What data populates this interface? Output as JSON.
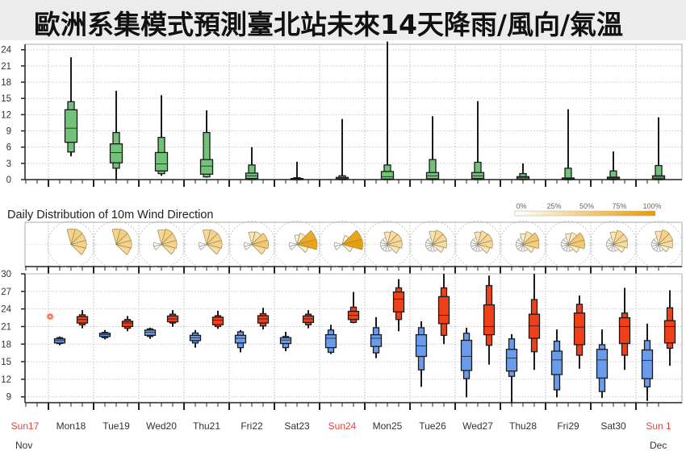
{
  "title": "歐洲系集模式預測臺北站未來14天降雨/風向/氣溫",
  "colors": {
    "precip_fill": "#72c27a",
    "tmin_fill": "#6b9cec",
    "tmax_fill": "#f0401a",
    "outline": "#1a1a1a",
    "sunday_label": "#d9463e",
    "weekday_label": "#333333",
    "rose_high": "#e89a00",
    "observation": "#f05a3c"
  },
  "x_axis": {
    "day_labels": [
      "Sun17",
      "Mon18",
      "Tue19",
      "Wed20",
      "Thu21",
      "Fri22",
      "Sat23",
      "Sun24",
      "Mon25",
      "Tue26",
      "Wed27",
      "Thu28",
      "Fri29",
      "Sat30",
      "Sun 1"
    ],
    "sundays": [
      "Sun17",
      "Sun24",
      "Sun 1"
    ],
    "month_labels": [
      "Nov",
      "Dec"
    ]
  },
  "wind": {
    "title": "Daily Distribution of 10m Wind Direction",
    "legend_labels": [
      "0%",
      "25%",
      "50%",
      "75%",
      "100%"
    ]
  },
  "chart_data": [
    {
      "type": "boxplot",
      "panel": "daily precipitation",
      "ylim": [
        0,
        25
      ],
      "yticks": [
        0,
        3,
        6,
        9,
        12,
        15,
        18,
        21,
        24
      ],
      "grid": true,
      "stat_order": [
        "min",
        "p10",
        "p25",
        "median",
        "p75",
        "p90",
        "max"
      ],
      "categories": [
        "Mon18",
        "Tue19",
        "Wed20",
        "Thu21",
        "Fri22",
        "Sat23",
        "Sun24",
        "Mon25",
        "Tue26",
        "Wed27",
        "Thu28",
        "Fri29",
        "Sat30",
        "Sun 1"
      ],
      "values": [
        [
          4.3,
          5.1,
          6.9,
          9.5,
          12.9,
          14.4,
          22.6
        ],
        [
          0,
          2.1,
          3.1,
          5.0,
          6.6,
          8.7,
          16.4
        ],
        [
          0.7,
          1.1,
          1.6,
          2.9,
          5.0,
          7.8,
          15.6
        ],
        [
          0.35,
          0.5,
          1.0,
          2.5,
          3.7,
          8.7,
          12.8
        ],
        [
          0,
          0,
          0.2,
          0.7,
          1.2,
          2.7,
          6.0
        ],
        [
          0,
          0,
          0,
          0.1,
          0.2,
          0.35,
          3.3
        ],
        [
          0,
          0,
          0.1,
          0.2,
          0.4,
          0.7,
          11.2
        ],
        [
          0,
          0,
          0.1,
          0.55,
          1.5,
          2.7,
          25.5
        ],
        [
          0,
          0,
          0.15,
          0.7,
          1.3,
          3.7,
          11.7
        ],
        [
          0,
          0,
          0.2,
          0.7,
          1.3,
          3.2,
          14.5
        ],
        [
          0,
          0,
          0.1,
          0.35,
          0.55,
          1.1,
          3.0
        ],
        [
          0,
          0,
          0.05,
          0.15,
          0.3,
          2.1,
          13.0
        ],
        [
          0,
          0,
          0.1,
          0.3,
          0.45,
          1.6,
          5.2
        ],
        [
          0,
          0,
          0.15,
          0.45,
          0.7,
          2.6,
          11.5
        ]
      ]
    },
    {
      "type": "windrose",
      "panel": "daily distribution of 10m wind direction",
      "directions_deg": [
        0,
        30,
        60,
        90,
        120,
        150,
        180,
        210,
        240,
        270,
        300,
        330
      ],
      "scale": [
        0,
        100
      ],
      "categories": [
        "Mon18",
        "Tue19",
        "Wed20",
        "Thu21",
        "Fri22",
        "Sat23",
        "Sun24",
        "Mon25",
        "Tue26",
        "Wed27",
        "Thu28",
        "Fri29",
        "Sat30",
        "Sun 1"
      ],
      "values": [
        [
          45,
          50,
          45,
          45,
          40,
          0,
          0,
          0,
          0,
          0,
          0,
          0
        ],
        [
          45,
          50,
          45,
          45,
          40,
          0,
          0,
          0,
          0,
          0,
          0,
          0
        ],
        [
          40,
          50,
          45,
          45,
          35,
          0,
          0,
          0,
          5,
          5,
          0,
          0
        ],
        [
          40,
          45,
          45,
          45,
          35,
          0,
          0,
          0,
          5,
          5,
          0,
          0
        ],
        [
          25,
          30,
          50,
          55,
          35,
          0,
          0,
          0,
          5,
          5,
          0,
          0
        ],
        [
          10,
          20,
          85,
          90,
          20,
          0,
          0,
          0,
          5,
          5,
          0,
          0
        ],
        [
          0,
          10,
          90,
          95,
          15,
          0,
          0,
          0,
          5,
          5,
          0,
          0
        ],
        [
          25,
          35,
          40,
          40,
          25,
          3,
          3,
          3,
          3,
          3,
          3,
          3
        ],
        [
          30,
          40,
          40,
          35,
          20,
          3,
          3,
          3,
          3,
          3,
          3,
          3
        ],
        [
          25,
          35,
          40,
          40,
          25,
          3,
          3,
          3,
          3,
          3,
          3,
          3
        ],
        [
          15,
          30,
          55,
          50,
          20,
          3,
          3,
          3,
          3,
          3,
          3,
          3
        ],
        [
          15,
          25,
          55,
          55,
          20,
          3,
          3,
          3,
          3,
          3,
          3,
          3
        ],
        [
          25,
          40,
          40,
          35,
          20,
          3,
          3,
          3,
          3,
          3,
          3,
          3
        ],
        [
          30,
          45,
          40,
          35,
          15,
          3,
          3,
          3,
          3,
          3,
          3,
          3
        ]
      ]
    },
    {
      "type": "boxplot",
      "panel": "2m temperature",
      "ylim": [
        8,
        30
      ],
      "yticks": [
        9,
        12,
        15,
        18,
        21,
        24,
        27,
        30
      ],
      "grid": true,
      "stat_order": [
        "min",
        "p10",
        "p25",
        "median",
        "p75",
        "p90",
        "max"
      ],
      "observation": {
        "day": "Sun17",
        "value": 22.7
      },
      "categories": [
        "Mon18",
        "Tue19",
        "Wed20",
        "Thu21",
        "Fri22",
        "Sat23",
        "Sun24",
        "Mon25",
        "Tue26",
        "Wed27",
        "Thu28",
        "Fri29",
        "Sat30",
        "Sun 1"
      ],
      "series": [
        {
          "kind": "min",
          "values": [
            [
              17.8,
              18.1,
              18.2,
              18.6,
              18.9,
              19.1,
              19.3
            ],
            [
              18.8,
              19.1,
              19.3,
              19.6,
              19.85,
              20.0,
              20.4
            ],
            [
              18.9,
              19.3,
              19.5,
              20.0,
              20.4,
              20.6,
              20.8
            ],
            [
              17.4,
              18.2,
              18.6,
              19.1,
              19.5,
              19.9,
              20.4
            ],
            [
              16.6,
              17.4,
              18.2,
              19.0,
              19.5,
              20.1,
              20.4
            ],
            [
              16.8,
              17.4,
              18.1,
              18.7,
              19.1,
              19.3,
              20.1
            ],
            [
              16.3,
              16.6,
              17.4,
              19.0,
              19.6,
              20.4,
              21.3
            ],
            [
              15.6,
              16.5,
              17.6,
              19.0,
              19.6,
              20.8,
              22.6
            ],
            [
              10.7,
              13.6,
              15.9,
              17.7,
              19.6,
              20.8,
              21.9
            ],
            [
              8.9,
              12.1,
              13.5,
              15.9,
              18.65,
              19.85,
              20.8
            ],
            [
              7.9,
              12.5,
              13.4,
              15.6,
              17.1,
              18.9,
              19.7
            ],
            [
              8.9,
              10.2,
              12.8,
              15.3,
              16.8,
              18.5,
              20.5
            ],
            [
              8.8,
              9.9,
              12.2,
              15.3,
              17.1,
              17.9,
              20.5
            ],
            [
              8.3,
              10.7,
              12.1,
              15.2,
              17.0,
              18.6,
              21.5
            ]
          ]
        },
        {
          "kind": "max",
          "values": [
            [
              20.7,
              21.3,
              21.6,
              22.2,
              22.7,
              23.0,
              23.8
            ],
            [
              20.2,
              20.7,
              21.0,
              21.6,
              21.9,
              22.2,
              22.8
            ],
            [
              20.95,
              21.6,
              21.8,
              22.3,
              22.8,
              23.1,
              23.8
            ],
            [
              20.6,
              21.0,
              21.3,
              22.1,
              22.6,
              22.85,
              23.7
            ],
            [
              20.5,
              21.1,
              21.6,
              22.3,
              22.85,
              23.2,
              24.2
            ],
            [
              20.7,
              21.3,
              21.7,
              22.3,
              22.8,
              23.1,
              23.8
            ],
            [
              21.55,
              21.7,
              22.2,
              22.9,
              23.6,
              24.3,
              26.9
            ],
            [
              20.2,
              22.2,
              23.5,
              25.7,
              26.9,
              27.6,
              29.1
            ],
            [
              18.0,
              19.5,
              21.5,
              22.9,
              26.1,
              27.6,
              30.0
            ],
            [
              14.5,
              17.8,
              19.6,
              21.0,
              24.7,
              28.0,
              29.7
            ],
            [
              13.6,
              16.7,
              19.0,
              21.1,
              23.1,
              25.6,
              30.0
            ],
            [
              13.8,
              16.1,
              17.9,
              20.9,
              23.3,
              24.8,
              26.3
            ],
            [
              13.6,
              16.1,
              18.1,
              21.0,
              22.5,
              23.3,
              27.6
            ],
            [
              14.3,
              17.3,
              18.2,
              21.0,
              22.0,
              24.2,
              27.2
            ]
          ]
        }
      ]
    }
  ]
}
